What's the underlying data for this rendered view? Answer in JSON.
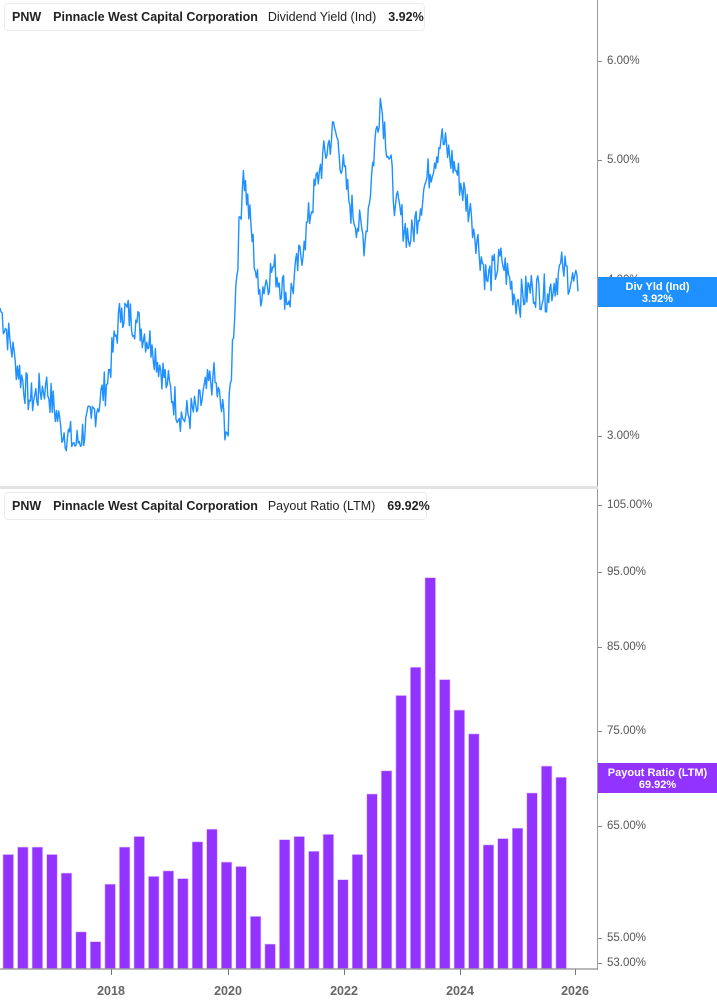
{
  "top_panel": {
    "legend": {
      "ticker": "PNW",
      "company": "Pinnacle West Capital Corporation",
      "metric": "Dividend Yield (Ind)",
      "value": "3.92%",
      "color": "#1e90ff"
    },
    "y_ticks": [
      "6.00%",
      "5.00%",
      "4.00%",
      "3.00%"
    ],
    "badge": {
      "label": "Div Yld (Ind)",
      "value": "3.92%",
      "color": "#1e90ff"
    }
  },
  "bottom_panel": {
    "legend": {
      "ticker": "PNW",
      "company": "Pinnacle West Capital Corporation",
      "metric": "Payout Ratio (LTM)",
      "value": "69.92%",
      "color": "#9333ff"
    },
    "y_ticks": [
      "105.00%",
      "95.00%",
      "85.00%",
      "75.00%",
      "65.00%",
      "55.00%",
      "53.00%"
    ],
    "badge": {
      "label": "Payout Ratio (LTM)",
      "value": "69.92%",
      "color": "#9333ff"
    }
  },
  "x_axis": {
    "ticks": [
      "2018",
      "2020",
      "2022",
      "2024",
      "2026"
    ]
  },
  "chart_data": [
    {
      "type": "line",
      "title": "PNW Pinnacle West Capital Corporation Dividend Yield (Ind)",
      "series": [
        {
          "name": "Dividend Yield (Ind)",
          "color": "#1e90ff"
        }
      ],
      "x": [
        "2016.3",
        "2016.6",
        "2016.9",
        "2017.2",
        "2017.5",
        "2017.8",
        "2018.0",
        "2018.2",
        "2018.4",
        "2018.7",
        "2018.9",
        "2019.2",
        "2019.5",
        "2019.8",
        "2020.0",
        "2020.15",
        "2020.2",
        "2020.4",
        "2020.7",
        "2021.0",
        "2021.3",
        "2021.6",
        "2021.9",
        "2022.1",
        "2022.4",
        "2022.6",
        "2022.8",
        "2023.1",
        "2023.3",
        "2023.6",
        "2023.9",
        "2024.1",
        "2024.3",
        "2024.6",
        "2024.9",
        "2025.1",
        "2025.4",
        "2025.6",
        "2025.8"
      ],
      "values": [
        3.8,
        3.45,
        3.2,
        3.3,
        3.05,
        2.95,
        3.1,
        3.3,
        3.8,
        3.7,
        3.55,
        3.3,
        3.1,
        3.15,
        3.35,
        3.0,
        4.9,
        3.9,
        4.1,
        3.85,
        4.3,
        4.9,
        5.3,
        4.6,
        4.3,
        5.6,
        4.6,
        4.3,
        4.8,
        5.2,
        4.9,
        4.5,
        4.0,
        4.15,
        3.85,
        3.95,
        3.9,
        4.1,
        3.92
      ],
      "xlabel": "",
      "ylabel": "",
      "ylim": [
        2.85,
        6.3
      ],
      "y_scale": "log",
      "y_ticks": [
        "6.00%",
        "5.00%",
        "4.00%",
        "3.00%"
      ],
      "last_value_label": "3.92%"
    },
    {
      "type": "bar",
      "title": "PNW Pinnacle West Capital Corporation Payout Ratio (LTM)",
      "series": [
        {
          "name": "Payout Ratio (LTM)",
          "color": "#9333ff"
        }
      ],
      "categories": [
        "2016Q2",
        "2016Q3",
        "2016Q4",
        "2017Q1",
        "2017Q2",
        "2017Q3",
        "2017Q4",
        "2018Q1",
        "2018Q2",
        "2018Q3",
        "2018Q4",
        "2019Q1",
        "2019Q2",
        "2019Q3",
        "2019Q4",
        "2020Q1",
        "2020Q2",
        "2020Q3",
        "2020Q4",
        "2021Q1",
        "2021Q2",
        "2021Q3",
        "2021Q4",
        "2022Q1",
        "2022Q2",
        "2022Q3",
        "2022Q4",
        "2023Q1",
        "2023Q2",
        "2023Q3",
        "2023Q4",
        "2024Q1",
        "2024Q2",
        "2024Q3",
        "2024Q4",
        "2025Q1",
        "2025Q2",
        "2025Q3",
        "2025Q4"
      ],
      "values": [
        62.3,
        63.0,
        63.0,
        62.3,
        60.6,
        55.5,
        54.7,
        59.6,
        63.0,
        64.0,
        60.3,
        60.8,
        60.1,
        63.5,
        64.7,
        61.6,
        61.2,
        56.8,
        54.5,
        63.7,
        64.0,
        62.6,
        64.2,
        60.0,
        62.3,
        68.2,
        70.6,
        79.0,
        82.4,
        94.2,
        80.9,
        77.3,
        74.6,
        63.2,
        63.8,
        64.8,
        68.3,
        71.1,
        69.92
      ],
      "xlabel": "",
      "ylabel": "",
      "ylim": [
        52,
        107
      ],
      "y_scale": "log",
      "y_ticks": [
        "105.00%",
        "95.00%",
        "85.00%",
        "75.00%",
        "65.00%",
        "55.00%",
        "53.00%"
      ],
      "last_value_label": "69.92%"
    }
  ]
}
